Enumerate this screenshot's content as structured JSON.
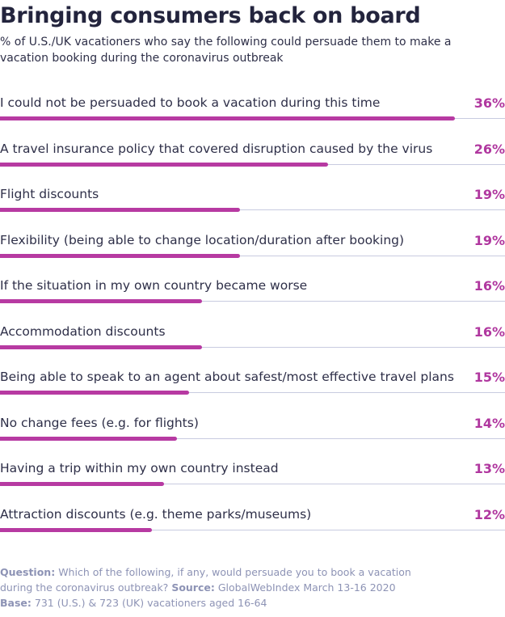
{
  "title": "Bringing consumers back on board",
  "subtitle": "% of U.S./UK vacationers who say the following could persuade them to make a vacation booking during the coronavirus outbreak",
  "chart_data": {
    "type": "bar",
    "orientation": "horizontal",
    "unit": "%",
    "xlim": [
      0,
      40
    ],
    "grid": false,
    "categories": [
      "I could not be persuaded to book a vacation during this time",
      "A travel insurance policy that covered disruption caused by the virus",
      "Flight discounts",
      "Flexibility (being able to change location/duration after booking)",
      "If the situation in my own country became worse",
      "Accommodation discounts",
      "Being able to speak to an agent about safest/most effective travel plans",
      "No change fees (e.g. for flights)",
      "Having a trip within my own country instead",
      "Attraction discounts (e.g. theme parks/museums)"
    ],
    "values": [
      36,
      26,
      19,
      19,
      16,
      16,
      15,
      14,
      13,
      12
    ],
    "value_labels": [
      "36%",
      "26%",
      "19%",
      "19%",
      "16%",
      "16%",
      "15%",
      "14%",
      "13%",
      "12%"
    ],
    "colors": {
      "bar": "#b73aa2",
      "value_text": "#b0379f",
      "track": "#c8cbe0"
    }
  },
  "footer": {
    "question_label": "Question:",
    "question_text": "Which of the following, if any, would persuade you to book a vacation during the coronavirus outbreak?",
    "source_label": "Source:",
    "source_text": "GlobalWebIndex March 13-16 2020",
    "base_label": "Base:",
    "base_text": "731 (U.S.) & 723 (UK) vacationers aged 16-64"
  }
}
